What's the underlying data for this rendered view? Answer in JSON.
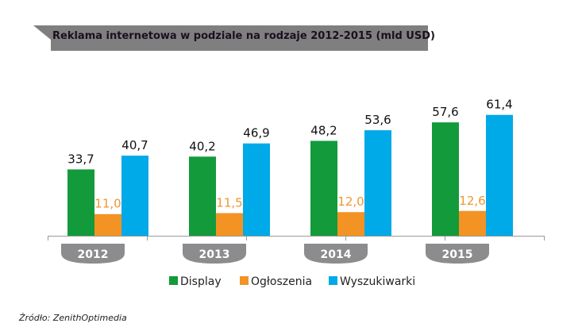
{
  "chart_data": {
    "type": "bar",
    "title": "Reklama internetowa w podziale na rodzaje 2012-2015 (mld USD)",
    "categories": [
      "2012",
      "2013",
      "2014",
      "2015"
    ],
    "series": [
      {
        "name": "Display",
        "color": "#139a3b",
        "label_color": "#111111",
        "values": [
          33.7,
          40.2,
          48.2,
          57.6
        ],
        "labels": [
          "33,7",
          "40,2",
          "48,2",
          "57,6"
        ]
      },
      {
        "name": "Ogłoszenia",
        "color": "#f39323",
        "label_color": "#f0962e",
        "values": [
          11.0,
          11.5,
          12.0,
          12.6
        ],
        "labels": [
          "11,0",
          "11,5",
          "12,0",
          "12,6"
        ]
      },
      {
        "name": "Wyszukiwarki",
        "color": "#00a9e8",
        "label_color": "#111111",
        "values": [
          40.7,
          46.9,
          53.6,
          61.4
        ],
        "labels": [
          "40,7",
          "46,9",
          "53,6",
          "61,4"
        ]
      }
    ],
    "xlabel": "",
    "ylabel": "",
    "ylim": [
      0,
      65
    ],
    "grid": false,
    "legend": "bottom"
  },
  "source": "Źródło: ZenithOptimedia",
  "colors": {
    "banner": "#7f7f7f",
    "pill": "#8c8c8e",
    "axis": "#9a9a9a"
  }
}
